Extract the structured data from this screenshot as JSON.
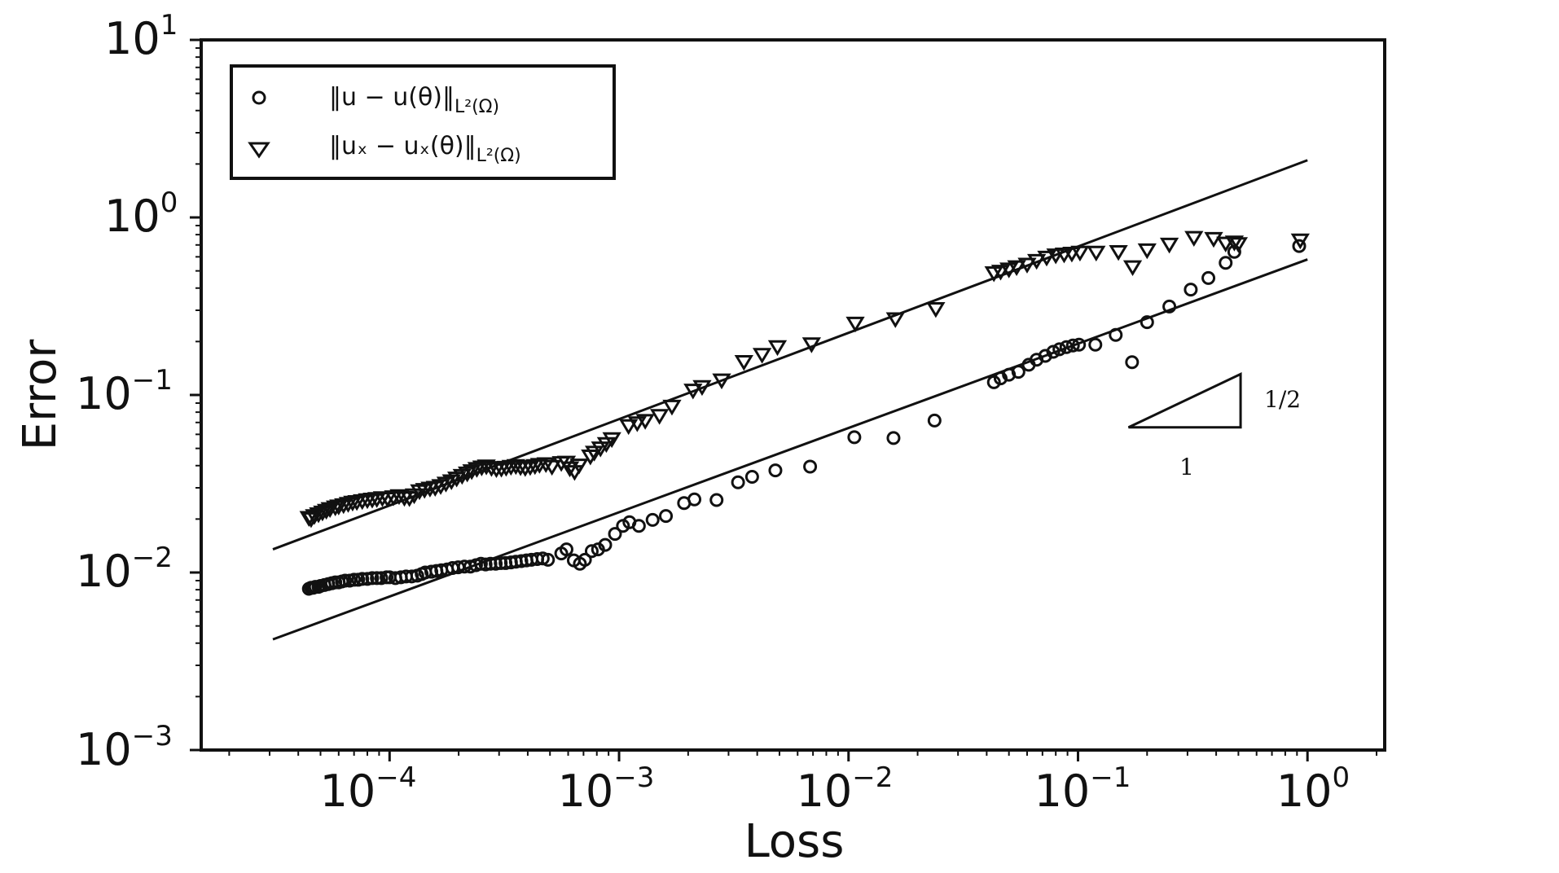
{
  "chart_data": {
    "type": "scatter",
    "x_scale": "log",
    "y_scale": "log",
    "xlabel": "Loss",
    "ylabel": "Error",
    "xlim": [
      1.51e-05,
      2.17
    ],
    "ylim": [
      0.001,
      10
    ],
    "x_ticks": [
      {
        "base": "10",
        "exp": "−4",
        "value": 0.0001
      },
      {
        "base": "10",
        "exp": "−3",
        "value": 0.001
      },
      {
        "base": "10",
        "exp": "−2",
        "value": 0.01
      },
      {
        "base": "10",
        "exp": "−1",
        "value": 0.1
      },
      {
        "base": "10",
        "exp": "0",
        "value": 1
      }
    ],
    "y_ticks": [
      {
        "base": "10",
        "exp": "−3",
        "value": 0.001
      },
      {
        "base": "10",
        "exp": "−2",
        "value": 0.01
      },
      {
        "base": "10",
        "exp": "−1",
        "value": 0.1
      },
      {
        "base": "10",
        "exp": "0",
        "value": 1
      },
      {
        "base": "10",
        "exp": "1",
        "value": 10
      }
    ],
    "legend": {
      "placement": "top-left",
      "entries": [
        {
          "series": "u",
          "main": "‖u − u(θ)‖",
          "sub": "L²(Ω)"
        },
        {
          "series": "ux",
          "main": "‖uₓ − uₓ(θ)‖",
          "sub": "L²(Ω)"
        }
      ]
    },
    "series": [
      {
        "name": "u_error",
        "marker": "circle",
        "points": [
          [
            4.45e-05,
            0.0081
          ],
          [
            4.55e-05,
            0.0082
          ],
          [
            4.65e-05,
            0.0082
          ],
          [
            4.75e-05,
            0.0083
          ],
          [
            4.9e-05,
            0.0083
          ],
          [
            5e-05,
            0.0084
          ],
          [
            5.2e-05,
            0.0085
          ],
          [
            5.4e-05,
            0.0086
          ],
          [
            5.6e-05,
            0.0087
          ],
          [
            5.8e-05,
            0.0088
          ],
          [
            6e-05,
            0.0088
          ],
          [
            6.2e-05,
            0.0089
          ],
          [
            6.4e-05,
            0.009
          ],
          [
            6.7e-05,
            0.009
          ],
          [
            7e-05,
            0.0091
          ],
          [
            7.3e-05,
            0.0091
          ],
          [
            7.6e-05,
            0.0092
          ],
          [
            8e-05,
            0.0092
          ],
          [
            8.4e-05,
            0.0093
          ],
          [
            8.8e-05,
            0.0093
          ],
          [
            9.2e-05,
            0.0093
          ],
          [
            9.7e-05,
            0.0094
          ],
          [
            0.0001,
            0.0094
          ],
          [
            0.000106,
            0.0093
          ],
          [
            0.000112,
            0.0094
          ],
          [
            0.000118,
            0.0095
          ],
          [
            0.000125,
            0.0095
          ],
          [
            0.000132,
            0.0096
          ],
          [
            0.000138,
            0.0098
          ],
          [
            0.000143,
            0.01
          ],
          [
            0.000152,
            0.0101
          ],
          [
            0.00016,
            0.0102
          ],
          [
            0.000168,
            0.0103
          ],
          [
            0.000178,
            0.0104
          ],
          [
            0.000188,
            0.0106
          ],
          [
            0.000199,
            0.0107
          ],
          [
            0.000212,
            0.0108
          ],
          [
            0.000225,
            0.0108
          ],
          [
            0.000238,
            0.011
          ],
          [
            0.00025,
            0.0112
          ],
          [
            0.000262,
            0.0111
          ],
          [
            0.000275,
            0.0112
          ],
          [
            0.00029,
            0.0112
          ],
          [
            0.000305,
            0.0113
          ],
          [
            0.00032,
            0.0113
          ],
          [
            0.000338,
            0.0114
          ],
          [
            0.000355,
            0.0115
          ],
          [
            0.000375,
            0.0116
          ],
          [
            0.000395,
            0.0117
          ],
          [
            0.000415,
            0.0118
          ],
          [
            0.00044,
            0.0119
          ],
          [
            0.000465,
            0.012
          ],
          [
            0.00049,
            0.0118
          ],
          [
            0.00056,
            0.0128
          ],
          [
            0.00059,
            0.0135
          ],
          [
            0.000635,
            0.0117
          ],
          [
            0.000675,
            0.0112
          ],
          [
            0.00071,
            0.0118
          ],
          [
            0.00076,
            0.0132
          ],
          [
            0.00081,
            0.0135
          ],
          [
            0.00087,
            0.0143
          ],
          [
            0.00096,
            0.0165
          ],
          [
            0.00104,
            0.0183
          ],
          [
            0.00111,
            0.0192
          ],
          [
            0.00122,
            0.0183
          ],
          [
            0.0014,
            0.0198
          ],
          [
            0.0016,
            0.0208
          ],
          [
            0.00192,
            0.0246
          ],
          [
            0.00213,
            0.0258
          ],
          [
            0.00266,
            0.0256
          ],
          [
            0.0033,
            0.0322
          ],
          [
            0.0038,
            0.0346
          ],
          [
            0.0048,
            0.0376
          ],
          [
            0.0068,
            0.0395
          ],
          [
            0.0106,
            0.0578
          ],
          [
            0.0157,
            0.0572
          ],
          [
            0.0237,
            0.0718
          ],
          [
            0.043,
            0.118
          ],
          [
            0.046,
            0.124
          ],
          [
            0.05,
            0.13
          ],
          [
            0.055,
            0.135
          ],
          [
            0.061,
            0.148
          ],
          [
            0.066,
            0.158
          ],
          [
            0.072,
            0.166
          ],
          [
            0.078,
            0.175
          ],
          [
            0.083,
            0.181
          ],
          [
            0.089,
            0.186
          ],
          [
            0.095,
            0.19
          ],
          [
            0.101,
            0.192
          ],
          [
            0.119,
            0.192
          ],
          [
            0.146,
            0.218
          ],
          [
            0.172,
            0.153
          ],
          [
            0.2,
            0.257
          ],
          [
            0.25,
            0.315
          ],
          [
            0.31,
            0.392
          ],
          [
            0.37,
            0.456
          ],
          [
            0.44,
            0.555
          ],
          [
            0.48,
            0.64
          ],
          [
            0.92,
            0.69
          ]
        ]
      },
      {
        "name": "ux_error",
        "marker": "triangle-down",
        "points": [
          [
            4.45e-05,
            0.0205
          ],
          [
            4.55e-05,
            0.0202
          ],
          [
            4.7e-05,
            0.021
          ],
          [
            4.9e-05,
            0.0215
          ],
          [
            5.1e-05,
            0.022
          ],
          [
            5.3e-05,
            0.0225
          ],
          [
            5.5e-05,
            0.023
          ],
          [
            5.8e-05,
            0.0235
          ],
          [
            6e-05,
            0.0238
          ],
          [
            6.3e-05,
            0.0242
          ],
          [
            6.6e-05,
            0.0246
          ],
          [
            6.9e-05,
            0.025
          ],
          [
            7.2e-05,
            0.0252
          ],
          [
            7.6e-05,
            0.0255
          ],
          [
            8e-05,
            0.0258
          ],
          [
            8.4e-05,
            0.026
          ],
          [
            8.8e-05,
            0.0262
          ],
          [
            9.3e-05,
            0.0265
          ],
          [
            9.8e-05,
            0.0263
          ],
          [
            0.000104,
            0.0268
          ],
          [
            0.00011,
            0.0272
          ],
          [
            0.000116,
            0.0266
          ],
          [
            0.000122,
            0.0265
          ],
          [
            0.000128,
            0.0275
          ],
          [
            0.000135,
            0.029
          ],
          [
            0.000142,
            0.0295
          ],
          [
            0.00015,
            0.03
          ],
          [
            0.000158,
            0.0303
          ],
          [
            0.000167,
            0.031
          ],
          [
            0.000176,
            0.032
          ],
          [
            0.000186,
            0.033
          ],
          [
            0.000196,
            0.0342
          ],
          [
            0.000207,
            0.0354
          ],
          [
            0.000218,
            0.0365
          ],
          [
            0.000228,
            0.0376
          ],
          [
            0.00024,
            0.0387
          ],
          [
            0.000252,
            0.0395
          ],
          [
            0.000264,
            0.04
          ],
          [
            0.000278,
            0.0392
          ],
          [
            0.000292,
            0.0386
          ],
          [
            0.000307,
            0.0388
          ],
          [
            0.000322,
            0.0393
          ],
          [
            0.000338,
            0.0398
          ],
          [
            0.000355,
            0.0402
          ],
          [
            0.000372,
            0.0396
          ],
          [
            0.00039,
            0.0392
          ],
          [
            0.00041,
            0.0397
          ],
          [
            0.00043,
            0.0402
          ],
          [
            0.00045,
            0.0408
          ],
          [
            0.00048,
            0.0412
          ],
          [
            0.00051,
            0.0398
          ],
          [
            0.00056,
            0.0418
          ],
          [
            0.00059,
            0.042
          ],
          [
            0.00061,
            0.039
          ],
          [
            0.00064,
            0.0372
          ],
          [
            0.00067,
            0.0405
          ],
          [
            0.00075,
            0.0455
          ],
          [
            0.00078,
            0.0478
          ],
          [
            0.00083,
            0.0505
          ],
          [
            0.00088,
            0.0535
          ],
          [
            0.00093,
            0.057
          ],
          [
            0.0011,
            0.0675
          ],
          [
            0.0012,
            0.07
          ],
          [
            0.0013,
            0.0722
          ],
          [
            0.0015,
            0.077
          ],
          [
            0.0017,
            0.0868
          ],
          [
            0.0021,
            0.107
          ],
          [
            0.0023,
            0.112
          ],
          [
            0.0028,
            0.122
          ],
          [
            0.0035,
            0.155
          ],
          [
            0.0042,
            0.17
          ],
          [
            0.0049,
            0.188
          ],
          [
            0.0069,
            0.195
          ],
          [
            0.0107,
            0.255
          ],
          [
            0.016,
            0.27
          ],
          [
            0.024,
            0.308
          ],
          [
            0.043,
            0.49
          ],
          [
            0.046,
            0.5
          ],
          [
            0.05,
            0.515
          ],
          [
            0.054,
            0.53
          ],
          [
            0.06,
            0.548
          ],
          [
            0.066,
            0.575
          ],
          [
            0.073,
            0.6
          ],
          [
            0.08,
            0.618
          ],
          [
            0.087,
            0.625
          ],
          [
            0.094,
            0.632
          ],
          [
            0.102,
            0.64
          ],
          [
            0.12,
            0.64
          ],
          [
            0.15,
            0.645
          ],
          [
            0.173,
            0.53
          ],
          [
            0.2,
            0.66
          ],
          [
            0.25,
            0.71
          ],
          [
            0.32,
            0.775
          ],
          [
            0.39,
            0.765
          ],
          [
            0.44,
            0.72
          ],
          [
            0.48,
            0.73
          ],
          [
            0.5,
            0.715
          ],
          [
            0.93,
            0.75
          ]
        ]
      }
    ],
    "reference_lines": [
      {
        "name": "ux_trend",
        "slope": 0.5,
        "x_range": [
          3.1e-05,
          1.0
        ],
        "y_at_start": 0.0135,
        "y_at_end": 2.1
      },
      {
        "name": "u_trend",
        "slope": 0.5,
        "x_range": [
          3.1e-05,
          1.0
        ],
        "y_at_start": 0.0042,
        "y_at_end": 0.58
      }
    ],
    "slope_triangle": {
      "rise_label": "1/2",
      "run_label": "1",
      "x_range": [
        0.166,
        0.511
      ],
      "y_range": [
        0.0657,
        0.131
      ]
    }
  }
}
